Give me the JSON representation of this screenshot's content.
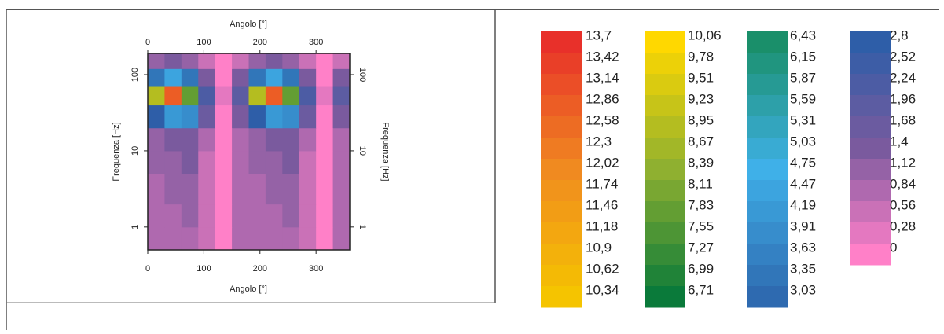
{
  "chart_data": {
    "type": "heatmap",
    "xlabel": "Angolo [°]",
    "ylabel": "Frequenza [Hz]",
    "xlim": [
      0,
      360
    ],
    "xticks": [
      0,
      100,
      200,
      300
    ],
    "ylim": [
      0.5,
      190
    ],
    "yticks": [
      1,
      10,
      100
    ],
    "ylog": true,
    "x_edges": [
      0,
      30,
      60,
      90,
      120,
      150,
      180,
      210,
      240,
      270,
      300,
      330,
      360
    ],
    "y_edges": [
      0.5,
      1,
      2,
      5,
      10,
      20,
      40,
      70,
      120,
      190
    ],
    "z": [
      [
        0.84,
        0.84,
        0.84,
        0.56,
        0,
        0.84,
        0.84,
        0.84,
        0.84,
        0.56,
        0,
        0.84
      ],
      [
        0.84,
        0.84,
        1.12,
        0.56,
        0,
        0.84,
        0.84,
        0.84,
        1.12,
        0.56,
        0,
        0.84
      ],
      [
        0.84,
        1.12,
        1.12,
        0.56,
        0,
        0.84,
        0.84,
        1.12,
        1.12,
        0.56,
        0,
        0.84
      ],
      [
        1.12,
        1.12,
        1.4,
        0.56,
        0,
        0.84,
        1.12,
        1.12,
        1.4,
        0.56,
        0,
        0.84
      ],
      [
        1.12,
        1.4,
        1.4,
        0.84,
        0,
        0.84,
        1.12,
        1.4,
        1.4,
        0.84,
        0,
        0.84
      ],
      [
        3,
        4.2,
        4,
        1.68,
        0,
        1.4,
        3,
        4.2,
        4,
        1.68,
        0,
        1.4
      ],
      [
        9,
        13,
        8,
        2.5,
        0.28,
        2,
        9,
        13,
        8,
        2.5,
        0.28,
        2
      ],
      [
        3.5,
        4.5,
        3.5,
        1.5,
        0,
        1.4,
        3.5,
        4.5,
        3.5,
        1.5,
        0,
        1.4
      ],
      [
        1.2,
        1.4,
        1.2,
        0.8,
        0,
        0.6,
        1.2,
        1.4,
        1.2,
        0.8,
        0,
        0.6
      ]
    ],
    "colorbar": [
      {
        "colors": [
          "#e8302a",
          "#f08a20",
          "#f5c400"
        ],
        "levels": [
          {
            "value": 13.7,
            "label": "13,7"
          },
          {
            "value": 13.42,
            "label": "13,42"
          },
          {
            "value": 13.14,
            "label": "13,14"
          },
          {
            "value": 12.86,
            "label": "12,86"
          },
          {
            "value": 12.58,
            "label": "12,58"
          },
          {
            "value": 12.3,
            "label": "12,3"
          },
          {
            "value": 12.02,
            "label": "12,02"
          },
          {
            "value": 11.74,
            "label": "11,74"
          },
          {
            "value": 11.46,
            "label": "11,46"
          },
          {
            "value": 11.18,
            "label": "11,18"
          },
          {
            "value": 10.9,
            "label": "10,9"
          },
          {
            "value": 10.62,
            "label": "10,62"
          },
          {
            "value": 10.34,
            "label": "10,34"
          }
        ]
      },
      {
        "colors": [
          "#ffd800",
          "#8fb030",
          "#0a7a3a"
        ],
        "levels": [
          {
            "value": 10.06,
            "label": "10,06"
          },
          {
            "value": 9.78,
            "label": "9,78"
          },
          {
            "value": 9.51,
            "label": "9,51"
          },
          {
            "value": 9.23,
            "label": "9,23"
          },
          {
            "value": 8.95,
            "label": "8,95"
          },
          {
            "value": 8.67,
            "label": "8,67"
          },
          {
            "value": 8.39,
            "label": "8,39"
          },
          {
            "value": 8.11,
            "label": "8,11"
          },
          {
            "value": 7.83,
            "label": "7,83"
          },
          {
            "value": 7.55,
            "label": "7,55"
          },
          {
            "value": 7.27,
            "label": "7,27"
          },
          {
            "value": 6.99,
            "label": "6,99"
          },
          {
            "value": 6.71,
            "label": "6,71"
          }
        ]
      },
      {
        "colors": [
          "#1a8f6a",
          "#3fb0e8",
          "#2e6ab0"
        ],
        "levels": [
          {
            "value": 6.43,
            "label": "6,43"
          },
          {
            "value": 6.15,
            "label": "6,15"
          },
          {
            "value": 5.87,
            "label": "5,87"
          },
          {
            "value": 5.59,
            "label": "5,59"
          },
          {
            "value": 5.31,
            "label": "5,31"
          },
          {
            "value": 5.03,
            "label": "5,03"
          },
          {
            "value": 4.75,
            "label": "4,75"
          },
          {
            "value": 4.47,
            "label": "4,47"
          },
          {
            "value": 4.19,
            "label": "4,19"
          },
          {
            "value": 3.91,
            "label": "3,91"
          },
          {
            "value": 3.63,
            "label": "3,63"
          },
          {
            "value": 3.35,
            "label": "3,35"
          },
          {
            "value": 3.03,
            "label": "3,03"
          }
        ]
      },
      {
        "colors": [
          "#2e5ea8",
          "#7a5a9e",
          "#ff80c8"
        ],
        "levels": [
          {
            "value": 2.8,
            "label": "2,8"
          },
          {
            "value": 2.52,
            "label": "2,52"
          },
          {
            "value": 2.24,
            "label": "2,24"
          },
          {
            "value": 1.96,
            "label": "1,96"
          },
          {
            "value": 1.68,
            "label": "1,68"
          },
          {
            "value": 1.4,
            "label": "1,4"
          },
          {
            "value": 1.12,
            "label": "1,12"
          },
          {
            "value": 0.84,
            "label": "0,84"
          },
          {
            "value": 0.56,
            "label": "0,56"
          },
          {
            "value": 0.28,
            "label": "0,28"
          },
          {
            "value": 0,
            "label": "0"
          }
        ]
      }
    ]
  }
}
